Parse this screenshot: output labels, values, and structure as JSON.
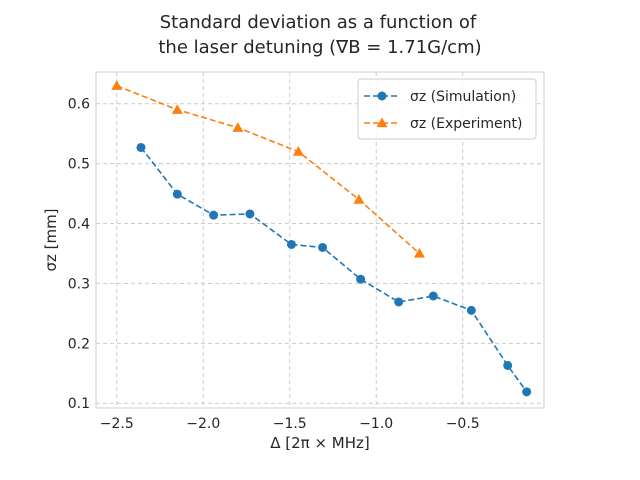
{
  "chart_data": {
    "type": "line",
    "title_line1": "Standard deviation as a function of",
    "title_line2": "the laser detuning (∇B = 1.71G/cm)",
    "xlabel": "Δ [2π × MHz]",
    "ylabel": "σz [mm]",
    "xlim": [
      -2.62,
      -0.03
    ],
    "ylim": [
      0.092,
      0.653
    ],
    "xticks": [
      -2.5,
      -2.0,
      -1.5,
      -1.0,
      -0.5
    ],
    "xtick_labels": [
      "−2.5",
      "−2.0",
      "−1.5",
      "−1.0",
      "−0.5"
    ],
    "yticks": [
      0.1,
      0.2,
      0.3,
      0.4,
      0.5,
      0.6
    ],
    "ytick_labels": [
      "0.1",
      "0.2",
      "0.3",
      "0.4",
      "0.5",
      "0.6"
    ],
    "grid": true,
    "legend_position": "top-right",
    "series": [
      {
        "name": "σz (Simulation)",
        "color": "#1f77b4",
        "marker": "circle",
        "x": [
          -2.36,
          -2.15,
          -1.94,
          -1.73,
          -1.49,
          -1.31,
          -1.09,
          -0.87,
          -0.67,
          -0.45,
          -0.24,
          -0.13
        ],
        "y": [
          0.527,
          0.449,
          0.414,
          0.416,
          0.365,
          0.36,
          0.307,
          0.269,
          0.279,
          0.255,
          0.163,
          0.119
        ]
      },
      {
        "name": "σz (Experiment)",
        "color": "#ff7f0e",
        "marker": "triangle",
        "x": [
          -2.5,
          -2.15,
          -1.8,
          -1.45,
          -1.1,
          -0.75
        ],
        "y": [
          0.63,
          0.59,
          0.56,
          0.52,
          0.44,
          0.35
        ]
      }
    ]
  }
}
